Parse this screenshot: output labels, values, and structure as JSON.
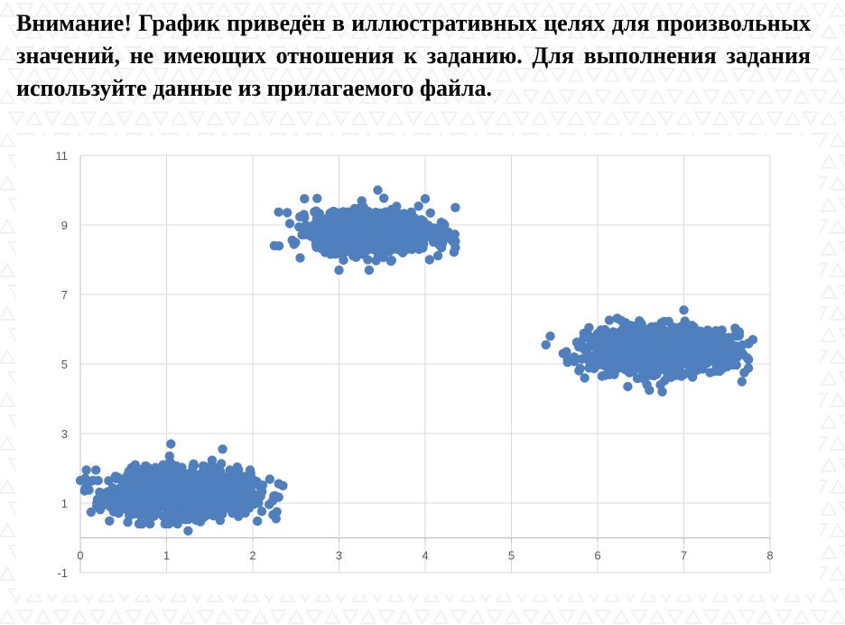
{
  "notice": {
    "text": "Внимание! График приведён в иллюстративных целях для произвольных значений, не имеющих отношения к заданию. Для выполнения задания используйте данные из прилагаемого файла."
  },
  "colors": {
    "points": "#4f7fbd",
    "grid": "#d9d9d9",
    "axis": "#bfbfbf",
    "tick_text": "#595959",
    "watermark": "#f2f2f2"
  },
  "chart_data": {
    "type": "scatter",
    "title": "",
    "xlabel": "",
    "ylabel": "",
    "xlim": [
      0,
      8
    ],
    "ylim": [
      -1,
      11
    ],
    "x_ticks": [
      0,
      1,
      2,
      3,
      4,
      5,
      6,
      7,
      8
    ],
    "y_ticks": [
      -1,
      1,
      3,
      5,
      7,
      9,
      11
    ],
    "grid": true,
    "legend": "none",
    "clusters": [
      {
        "center": [
          1.2,
          1.3
        ],
        "spread": [
          0.38,
          0.32
        ],
        "x_range": [
          0.0,
          2.35
        ],
        "y_range": [
          0.2,
          2.7
        ]
      },
      {
        "center": [
          3.4,
          8.8
        ],
        "spread": [
          0.33,
          0.27
        ],
        "x_range": [
          2.25,
          4.4
        ],
        "y_range": [
          7.7,
          10.0
        ]
      },
      {
        "center": [
          6.7,
          5.4
        ],
        "spread": [
          0.38,
          0.3
        ],
        "x_range": [
          5.4,
          7.8
        ],
        "y_range": [
          4.2,
          6.55
        ]
      }
    ],
    "points": [
      [
        0.0,
        1.65
      ],
      [
        0.07,
        1.95
      ],
      [
        0.18,
        1.95
      ],
      [
        0.15,
        1.65
      ],
      [
        1.05,
        2.7
      ],
      [
        1.65,
        2.55
      ],
      [
        2.28,
        0.75
      ],
      [
        2.27,
        0.55
      ],
      [
        2.35,
        1.5
      ],
      [
        1.25,
        0.2
      ],
      [
        0.55,
        0.45
      ],
      [
        2.25,
        8.4
      ],
      [
        2.4,
        9.35
      ],
      [
        2.6,
        9.75
      ],
      [
        3.45,
        10.0
      ],
      [
        4.0,
        9.75
      ],
      [
        4.35,
        9.5
      ],
      [
        4.35,
        8.35
      ],
      [
        2.55,
        8.05
      ],
      [
        3.0,
        7.7
      ],
      [
        3.35,
        7.7
      ],
      [
        4.05,
        8.0
      ],
      [
        5.4,
        5.55
      ],
      [
        5.45,
        5.8
      ],
      [
        5.6,
        5.3
      ],
      [
        6.05,
        4.65
      ],
      [
        6.35,
        4.35
      ],
      [
        6.6,
        4.25
      ],
      [
        6.75,
        4.2
      ],
      [
        7.0,
        6.55
      ],
      [
        7.75,
        5.6
      ],
      [
        7.8,
        5.7
      ],
      [
        7.7,
        4.75
      ]
    ]
  }
}
